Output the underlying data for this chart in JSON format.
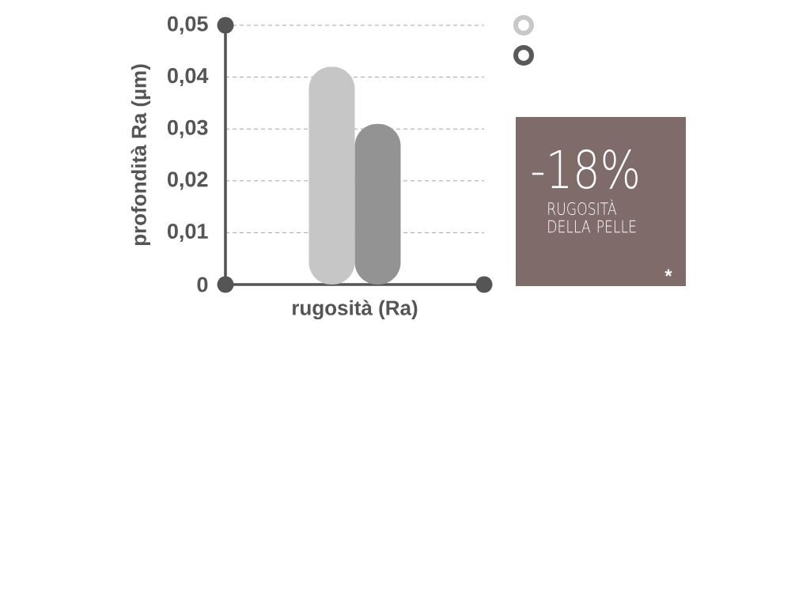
{
  "chart_data": [
    {
      "type": "bar",
      "ylabel": "profondità Ra (µm)",
      "categories": [
        "rugosità (Ra)"
      ],
      "series": [
        {
          "color": "#c6c6c6",
          "values": [
            0.042
          ]
        },
        {
          "color": "#939393",
          "values": [
            0.031
          ]
        }
      ],
      "ylim": [
        0,
        0.05
      ],
      "yticks": [
        0,
        {
          "value": 0.01,
          "label": "0,01"
        },
        {
          "value": 0.02,
          "label": "0,02"
        },
        {
          "value": 0.03,
          "label": "0,03"
        },
        {
          "value": 0.04,
          "label": "0,04"
        },
        {
          "value": 0.05,
          "label": "0,05"
        }
      ],
      "grid": "y"
    },
    {
      "type": "other",
      "annotations": [
        "-18%",
        "RUGOSITÀ DELLA PELLE",
        "*"
      ]
    }
  ]
}
